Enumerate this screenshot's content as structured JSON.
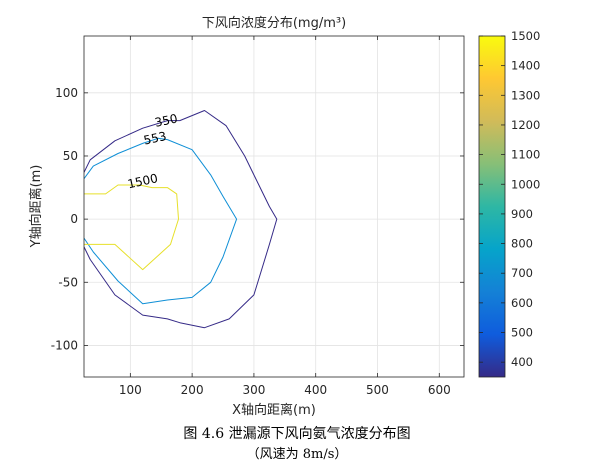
{
  "chart_data": {
    "type": "contour",
    "title": "下风向浓度分布(mg/m³)",
    "xlabel": "X轴向距离(m)",
    "ylabel": "Y轴向距离(m)",
    "xlim": [
      25,
      640
    ],
    "ylim": [
      -125,
      145
    ],
    "xticks": [
      100,
      200,
      300,
      400,
      500,
      600
    ],
    "yticks": [
      -100,
      -50,
      0,
      50,
      100
    ],
    "grid": true,
    "colorbar": {
      "min": 350,
      "max": 1500,
      "ticks": [
        400,
        500,
        600,
        700,
        800,
        900,
        1000,
        1100,
        1200,
        1300,
        1400,
        1500
      ],
      "colormap": "parula",
      "stops": [
        "#352a87",
        "#0f5cdd",
        "#1481d6",
        "#06a4ca",
        "#2eb7a4",
        "#87bf77",
        "#d1bb59",
        "#fec832",
        "#f9fb0e"
      ]
    },
    "contours": [
      {
        "level": 350,
        "label": "350",
        "color": "#352a87",
        "points": [
          [
            25,
            37
          ],
          [
            35,
            47
          ],
          [
            75,
            62
          ],
          [
            120,
            72
          ],
          [
            160,
            78
          ],
          [
            180,
            78
          ],
          [
            220,
            86
          ],
          [
            255,
            74
          ],
          [
            285,
            50
          ],
          [
            300,
            35
          ],
          [
            325,
            10
          ],
          [
            337,
            0
          ],
          [
            325,
            -20
          ],
          [
            300,
            -60
          ],
          [
            260,
            -79
          ],
          [
            220,
            -86
          ],
          [
            180,
            -82
          ],
          [
            160,
            -79
          ],
          [
            120,
            -76
          ],
          [
            75,
            -60
          ],
          [
            35,
            -32
          ],
          [
            25,
            -22
          ]
        ]
      },
      {
        "level": 553,
        "label": "553",
        "color": "#0f8fd6",
        "points": [
          [
            25,
            32
          ],
          [
            40,
            42
          ],
          [
            80,
            52
          ],
          [
            120,
            60
          ],
          [
            145,
            64
          ],
          [
            160,
            63
          ],
          [
            200,
            55
          ],
          [
            230,
            35
          ],
          [
            250,
            18
          ],
          [
            272,
            0
          ],
          [
            250,
            -30
          ],
          [
            230,
            -50
          ],
          [
            200,
            -62
          ],
          [
            160,
            -64
          ],
          [
            120,
            -67
          ],
          [
            80,
            -49
          ],
          [
            40,
            -26
          ],
          [
            25,
            -15
          ]
        ]
      },
      {
        "level": 1500,
        "label": "1500",
        "color": "#e7e02a",
        "points": [
          [
            25,
            20
          ],
          [
            60,
            20
          ],
          [
            80,
            27
          ],
          [
            115,
            27
          ],
          [
            135,
            25
          ],
          [
            160,
            25
          ],
          [
            175,
            20
          ],
          [
            178,
            0
          ],
          [
            165,
            -20
          ],
          [
            120,
            -40
          ],
          [
            75,
            -20
          ],
          [
            25,
            -20
          ]
        ]
      }
    ],
    "contour_labels": [
      {
        "level": 350,
        "x": 158,
        "y": 78
      },
      {
        "level": 553,
        "x": 140,
        "y": 64
      },
      {
        "level": 1500,
        "x": 120,
        "y": 30
      }
    ]
  },
  "caption": {
    "line1": "图 4.6  泄漏源下风向氨气浓度分布图",
    "line2": "（风速为 8m/s）"
  }
}
